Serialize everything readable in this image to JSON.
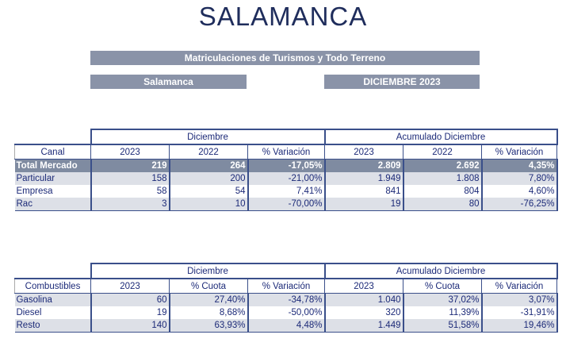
{
  "title": "SALAMANCA",
  "banner": "Matriculaciones de Turismos y Todo Terreno",
  "province": "Salamanca",
  "period": "DICIEMBRE 2023",
  "table1": {
    "group_left": "Diciembre",
    "group_right": "Acumulado Diciembre",
    "headers": [
      "Canal",
      "2023",
      "2022",
      "% Variación",
      "2023",
      "2022",
      "% Variación"
    ],
    "rows": [
      [
        "Total Mercado",
        "219",
        "264",
        "-17,05%",
        "2.809",
        "2.692",
        "4,35%"
      ],
      [
        "Particular",
        "158",
        "200",
        "-21,00%",
        "1.949",
        "1.808",
        "7,80%"
      ],
      [
        "Empresa",
        "58",
        "54",
        "7,41%",
        "841",
        "804",
        "4,60%"
      ],
      [
        "Rac",
        "3",
        "10",
        "-70,00%",
        "19",
        "80",
        "-76,25%"
      ]
    ]
  },
  "table2": {
    "group_left": "Diciembre",
    "group_right": "Acumulado Diciembre",
    "headers": [
      "Combustibles",
      "2023",
      "% Cuota",
      "% Variación",
      "2023",
      "% Cuota",
      "% Variación"
    ],
    "rows": [
      [
        "Gasolina",
        "60",
        "27,40%",
        "-34,78%",
        "1.040",
        "37,02%",
        "3,07%"
      ],
      [
        "Diesel",
        "19",
        "8,68%",
        "-50,00%",
        "320",
        "11,39%",
        "-31,91%"
      ],
      [
        "Resto",
        "140",
        "63,93%",
        "4,48%",
        "1.449",
        "51,58%",
        "19,46%"
      ]
    ]
  }
}
